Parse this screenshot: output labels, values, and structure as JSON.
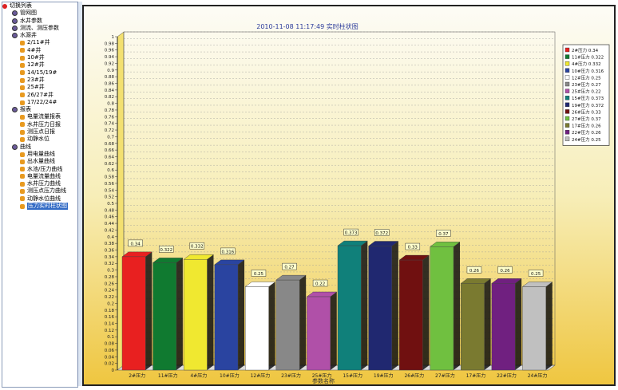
{
  "tree": [
    {
      "label": "切换列表",
      "type": "root",
      "level": 0
    },
    {
      "label": "管网图",
      "type": "grp",
      "level": 1
    },
    {
      "label": "水井参数",
      "type": "grp",
      "level": 1
    },
    {
      "label": "测流、测压参数",
      "type": "grp",
      "level": 1
    },
    {
      "label": "水源井",
      "type": "grp",
      "level": 1
    },
    {
      "label": "2/11#井",
      "type": "leaf",
      "level": 2
    },
    {
      "label": "4#井",
      "type": "leaf",
      "level": 2
    },
    {
      "label": "10#井",
      "type": "leaf",
      "level": 2
    },
    {
      "label": "12#井",
      "type": "leaf",
      "level": 2
    },
    {
      "label": "14/15/19#",
      "type": "leaf",
      "level": 2
    },
    {
      "label": "23#井",
      "type": "leaf",
      "level": 2
    },
    {
      "label": "25#井",
      "type": "leaf",
      "level": 2
    },
    {
      "label": "26/27#井",
      "type": "leaf",
      "level": 2
    },
    {
      "label": "17/22/24#",
      "type": "leaf",
      "level": 2
    },
    {
      "label": "报表",
      "type": "grp",
      "level": 1
    },
    {
      "label": "电量流量报表",
      "type": "leaf",
      "level": 2
    },
    {
      "label": "水井压力日报",
      "type": "leaf",
      "level": 2
    },
    {
      "label": "测压点日报",
      "type": "leaf",
      "level": 2
    },
    {
      "label": "动静水位",
      "type": "leaf",
      "level": 2
    },
    {
      "label": "曲线",
      "type": "grp",
      "level": 1
    },
    {
      "label": "用电量曲线",
      "type": "leaf",
      "level": 2
    },
    {
      "label": "出水量曲线",
      "type": "leaf",
      "level": 2
    },
    {
      "label": "水池/压力曲线",
      "type": "leaf",
      "level": 2
    },
    {
      "label": "电量流量曲线",
      "type": "leaf",
      "level": 2
    },
    {
      "label": "水井压力曲线",
      "type": "leaf",
      "level": 2
    },
    {
      "label": "测压点压力曲线",
      "type": "leaf",
      "level": 2
    },
    {
      "label": "动静水位曲线",
      "type": "leaf",
      "level": 2
    },
    {
      "label": "压力实时柱状图",
      "type": "leaf",
      "level": 2,
      "selected": true
    }
  ],
  "chart_data": {
    "type": "bar",
    "title": "2010-11-08 11:17:49 实时柱状图",
    "xlabel": "参数名称",
    "ylabel": "",
    "ylim": [
      0,
      1
    ],
    "ytick_step": 0.02,
    "grid": true,
    "legend_placement": "right",
    "categories": [
      "2#压力",
      "11#压力",
      "4#压力",
      "10#压力",
      "12#压力",
      "23#压力",
      "25#压力",
      "15#压力",
      "19#压力",
      "26#压力",
      "27#压力",
      "17#压力",
      "22#压力",
      "24#压力"
    ],
    "values": [
      0.34,
      0.322,
      0.332,
      0.316,
      0.25,
      0.27,
      0.22,
      0.373,
      0.372,
      0.33,
      0.37,
      0.26,
      0.26,
      0.25
    ],
    "data_labels": [
      "0.34",
      "0.322",
      "0.332",
      "0.316",
      "0.25",
      "0.27",
      "0.22",
      "0.373",
      "0.372",
      "0.33",
      "0.37",
      "0.26",
      "0.26",
      "0.25"
    ],
    "colors": [
      "#e82020",
      "#107a30",
      "#f0e830",
      "#2a44a0",
      "#ffffff",
      "#888888",
      "#b050a8",
      "#10807a",
      "#202870",
      "#701010",
      "#70c040",
      "#7a7a30",
      "#702080",
      "#c0c0c0"
    ]
  }
}
